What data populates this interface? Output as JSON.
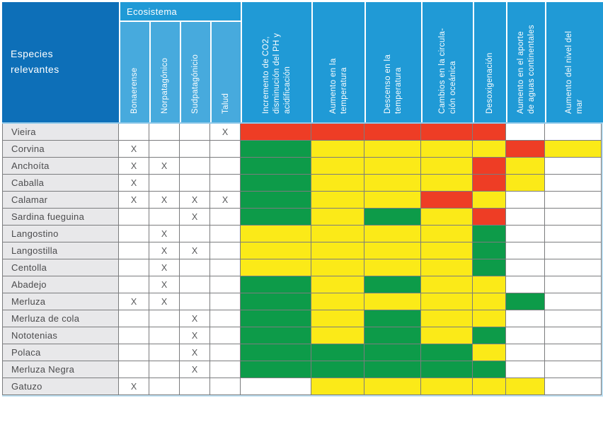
{
  "chart_data": {
    "type": "heatmap",
    "row_header": "Especies\nrelevantes",
    "column_groups": [
      {
        "label": "Ecosistema",
        "columns": [
          "Bonaerense",
          "Norpatagónico",
          "Sudpatagónicio",
          "Talud"
        ]
      }
    ],
    "impact_columns": [
      "Incremento de CO2,\ndisminución del PH y\nacidificación",
      "Aumento en la\ntemperatura",
      "Descenso en la\ntemperatura",
      "Cambios en la circula-\nción oceánica",
      "Desoxigenación",
      "Aumento en el aporte\nde aguas continentales",
      "Aumento del nivel del\nmar"
    ],
    "legend": {
      "red": "#ee3d25",
      "yellow": "#fbea18",
      "green": "#0d9b49",
      "none": "#ffffff"
    },
    "mark_symbol": "X",
    "rows": [
      {
        "species": "Vieira",
        "ecosystem_marks": [
          "",
          "",
          "",
          "X"
        ],
        "impact_levels": [
          "red",
          "red",
          "red",
          "red",
          "red",
          "none",
          "none"
        ]
      },
      {
        "species": "Corvina",
        "ecosystem_marks": [
          "X",
          "",
          "",
          ""
        ],
        "impact_levels": [
          "green",
          "yellow",
          "yellow",
          "yellow",
          "yellow",
          "red",
          "yellow"
        ]
      },
      {
        "species": "Anchoíta",
        "ecosystem_marks": [
          "X",
          "X",
          "",
          ""
        ],
        "impact_levels": [
          "green",
          "yellow",
          "yellow",
          "yellow",
          "red",
          "yellow",
          "none"
        ]
      },
      {
        "species": "Caballa",
        "ecosystem_marks": [
          "X",
          "",
          "",
          ""
        ],
        "impact_levels": [
          "green",
          "yellow",
          "yellow",
          "yellow",
          "red",
          "yellow",
          "none"
        ]
      },
      {
        "species": "Calamar",
        "ecosystem_marks": [
          "X",
          "X",
          "X",
          "X"
        ],
        "impact_levels": [
          "green",
          "yellow",
          "yellow",
          "red",
          "yellow",
          "none",
          "none"
        ]
      },
      {
        "species": "Sardina fueguina",
        "ecosystem_marks": [
          "",
          "",
          "X",
          ""
        ],
        "impact_levels": [
          "green",
          "yellow",
          "green",
          "yellow",
          "red",
          "none",
          "none"
        ]
      },
      {
        "species": "Langostino",
        "ecosystem_marks": [
          "",
          "X",
          "",
          ""
        ],
        "impact_levels": [
          "yellow",
          "yellow",
          "yellow",
          "yellow",
          "green",
          "none",
          "none"
        ]
      },
      {
        "species": "Langostilla",
        "ecosystem_marks": [
          "",
          "X",
          "X",
          ""
        ],
        "impact_levels": [
          "yellow",
          "yellow",
          "yellow",
          "yellow",
          "green",
          "none",
          "none"
        ]
      },
      {
        "species": "Centolla",
        "ecosystem_marks": [
          "",
          "X",
          "",
          ""
        ],
        "impact_levels": [
          "yellow",
          "yellow",
          "yellow",
          "yellow",
          "green",
          "none",
          "none"
        ]
      },
      {
        "species": "Abadejo",
        "ecosystem_marks": [
          "",
          "X",
          "",
          ""
        ],
        "impact_levels": [
          "green",
          "yellow",
          "green",
          "yellow",
          "yellow",
          "none",
          "none"
        ]
      },
      {
        "species": "Merluza",
        "ecosystem_marks": [
          "X",
          "X",
          "",
          ""
        ],
        "impact_levels": [
          "green",
          "yellow",
          "yellow",
          "yellow",
          "yellow",
          "green",
          "none"
        ]
      },
      {
        "species": "Merluza de cola",
        "ecosystem_marks": [
          "",
          "",
          "X",
          ""
        ],
        "impact_levels": [
          "green",
          "yellow",
          "green",
          "yellow",
          "yellow",
          "none",
          "none"
        ]
      },
      {
        "species": "Nototenias",
        "ecosystem_marks": [
          "",
          "",
          "X",
          ""
        ],
        "impact_levels": [
          "green",
          "yellow",
          "green",
          "yellow",
          "green",
          "none",
          "none"
        ]
      },
      {
        "species": "Polaca",
        "ecosystem_marks": [
          "",
          "",
          "X",
          ""
        ],
        "impact_levels": [
          "green",
          "green",
          "green",
          "green",
          "yellow",
          "none",
          "none"
        ]
      },
      {
        "species": "Merluza Negra",
        "ecosystem_marks": [
          "",
          "",
          "X",
          ""
        ],
        "impact_levels": [
          "green",
          "green",
          "green",
          "green",
          "green",
          "none",
          "none"
        ]
      },
      {
        "species": "Gatuzo",
        "ecosystem_marks": [
          "X",
          "",
          "",
          ""
        ],
        "impact_levels": [
          "none",
          "yellow",
          "yellow",
          "yellow",
          "yellow",
          "yellow",
          "none"
        ]
      }
    ]
  }
}
